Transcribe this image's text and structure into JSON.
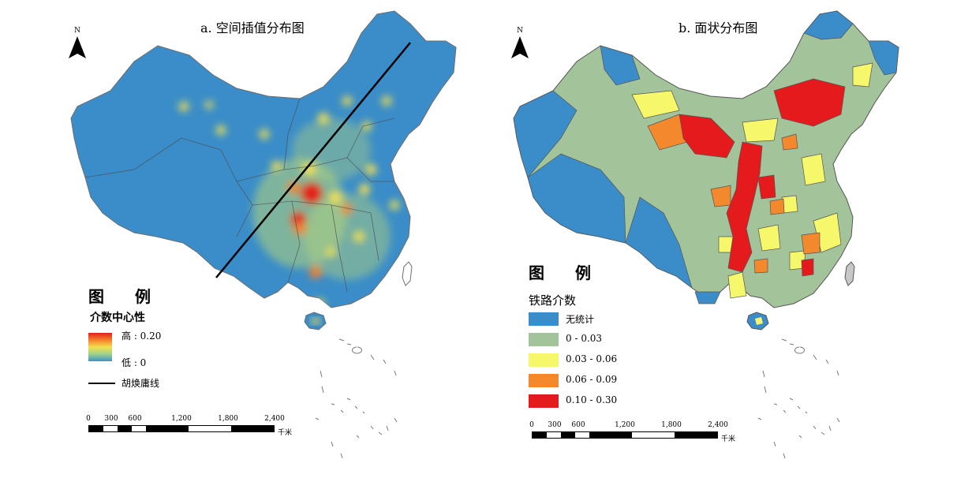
{
  "panel_a": {
    "title": "a. 空间插值分布图",
    "north": "N",
    "legend_title": "图 例",
    "legend_subtitle": "介数中心性",
    "high_label": "高 : 0.20",
    "low_label": "低 : 0",
    "line_label": "胡焕庸线",
    "scale_ticks": [
      "0",
      "300",
      "600",
      "1,200",
      "1,800",
      "2,400"
    ],
    "scale_unit": "千米"
  },
  "panel_b": {
    "title": "b. 面状分布图",
    "north": "N",
    "legend_title": "图 例",
    "legend_subtitle": "铁路介数",
    "classes": [
      {
        "label": "无统计",
        "color": "#3a8dc8"
      },
      {
        "label": "0 - 0.03",
        "color": "#a3c49a"
      },
      {
        "label": "0.03 - 0.06",
        "color": "#f6f76a"
      },
      {
        "label": "0.06 - 0.09",
        "color": "#f4882c"
      },
      {
        "label": "0.10 - 0.30",
        "color": "#e41a1c"
      }
    ],
    "scale_ticks": [
      "0",
      "300",
      "600",
      "1,200",
      "1,800",
      "2,400"
    ],
    "scale_unit": "千米"
  },
  "colors": {
    "base_blue": "#3a8dc8",
    "hot_red": "#e3201b",
    "warm_yellow": "#f4e04f",
    "green": "#a3c49a"
  },
  "icons": [
    "north-arrow-icon"
  ]
}
